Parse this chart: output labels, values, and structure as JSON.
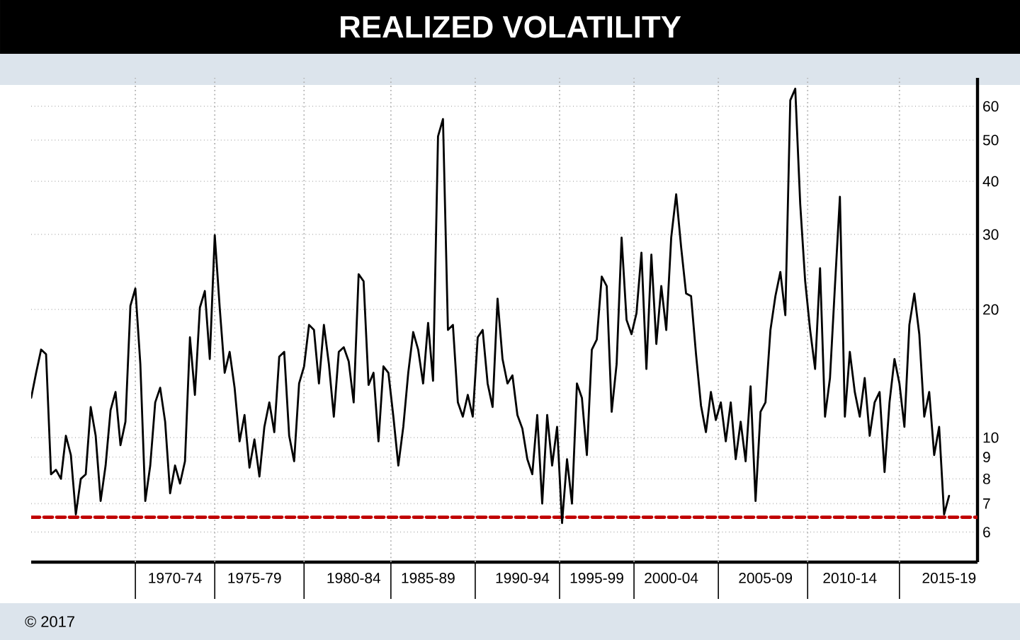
{
  "chart_data": {
    "type": "line",
    "title": "REALIZED VOLATILITY",
    "annotations": [
      "© 2017"
    ],
    "categories": [
      null,
      null,
      null,
      null,
      null,
      null,
      null,
      null,
      null,
      null,
      null,
      null,
      null,
      null,
      null,
      null,
      null,
      null,
      null,
      null,
      null,
      null,
      null,
      null,
      null,
      null,
      null,
      null,
      null,
      "1970-74",
      null,
      null,
      null,
      null,
      null,
      null,
      null,
      null,
      null,
      null,
      null,
      null,
      null,
      null,
      null,
      "1975-79",
      null,
      null,
      null,
      null,
      null,
      null,
      null,
      null,
      null,
      null,
      null,
      null,
      null,
      null,
      null,
      null,
      null,
      null,
      null,
      "1980-84",
      null,
      null,
      null,
      null,
      null,
      null,
      null,
      null,
      null,
      null,
      null,
      null,
      null,
      null,
      "1985-89",
      null,
      null,
      null,
      null,
      null,
      null,
      null,
      null,
      null,
      null,
      null,
      null,
      null,
      null,
      null,
      null,
      null,
      null,
      "1990-94",
      null,
      null,
      null,
      null,
      null,
      null,
      null,
      null,
      null,
      null,
      null,
      null,
      null,
      null,
      "1995-99",
      null,
      null,
      null,
      null,
      null,
      null,
      null,
      null,
      null,
      null,
      null,
      null,
      null,
      null,
      "2000-04",
      null,
      null,
      null,
      null,
      null,
      null,
      null,
      null,
      null,
      null,
      null,
      null,
      null,
      null,
      null,
      null,
      null,
      null,
      "2005-09",
      null,
      null,
      null,
      null,
      null,
      null,
      null,
      null,
      null,
      null,
      null,
      null,
      null,
      null,
      null,
      null,
      "2010-14",
      null,
      null,
      null,
      null,
      null,
      null,
      null,
      null,
      null,
      null,
      null,
      null,
      null,
      null,
      null,
      null,
      null,
      null,
      null,
      "2015-19"
    ],
    "values": [
      12.4,
      14.2,
      16.1,
      15.7,
      8.2,
      8.4,
      8.0,
      10.1,
      9.1,
      6.6,
      8.0,
      8.2,
      11.8,
      10.1,
      7.1,
      8.6,
      11.6,
      12.8,
      9.6,
      10.9,
      20.4,
      22.4,
      14.9,
      7.1,
      8.6,
      12.1,
      13.1,
      10.9,
      7.4,
      8.6,
      7.8,
      8.8,
      17.2,
      12.6,
      20.2,
      22.1,
      15.3,
      29.9,
      20.2,
      14.2,
      15.9,
      13.1,
      9.8,
      11.3,
      8.5,
      9.9,
      8.1,
      10.6,
      12.1,
      10.3,
      15.5,
      15.9,
      10.1,
      8.8,
      13.4,
      14.7,
      18.4,
      17.9,
      13.4,
      18.4,
      14.9,
      11.2,
      15.9,
      16.3,
      15.1,
      12.1,
      24.2,
      23.3,
      13.3,
      14.2,
      9.8,
      14.7,
      14.2,
      11.2,
      8.6,
      10.6,
      14.2,
      17.7,
      16.1,
      13.4,
      18.6,
      13.6,
      51,
      56,
      17.9,
      18.4,
      12.1,
      11.2,
      12.6,
      11.2,
      17.2,
      17.9,
      13.4,
      11.8,
      21.2,
      15.3,
      13.4,
      14.0,
      11.3,
      10.5,
      8.9,
      8.2,
      11.3,
      7.0,
      11.3,
      8.6,
      10.6,
      6.3,
      8.9,
      7.0,
      13.4,
      12.4,
      9.1,
      16.1,
      17.0,
      23.9,
      22.7,
      11.5,
      14.9,
      29.5,
      18.9,
      17.5,
      19.6,
      27.2,
      14.5,
      26.9,
      16.6,
      22.7,
      17.9,
      29.5,
      37.3,
      28,
      21.8,
      21.5,
      15.7,
      11.9,
      10.3,
      12.8,
      11.0,
      12.1,
      9.8,
      12.1,
      8.9,
      10.9,
      8.8,
      13.2,
      7.1,
      11.5,
      12.1,
      17.9,
      21.5,
      24.5,
      19.4,
      62,
      66,
      35.4,
      23.3,
      17.9,
      14.5,
      25.0,
      11.2,
      13.8,
      22.7,
      36.8,
      11.2,
      15.9,
      12.8,
      11.2,
      13.8,
      10.1,
      12.1,
      12.8,
      8.3,
      12.1,
      15.3,
      13.4,
      10.6,
      18.4,
      21.8,
      17.5,
      11.2,
      12.8,
      9.1,
      10.6,
      6.6,
      7.3
    ],
    "color": "#000000",
    "line_style": "solid",
    "ylim": [
      5.1,
      70
    ],
    "log": "y",
    "grid": true,
    "yticks": [
      6,
      7,
      8,
      9,
      10,
      20,
      30,
      40,
      50,
      60
    ],
    "ref_lines": [
      {
        "axis": "y",
        "value": 6.5,
        "color": "#c00000",
        "line_style": "dashed"
      }
    ]
  }
}
